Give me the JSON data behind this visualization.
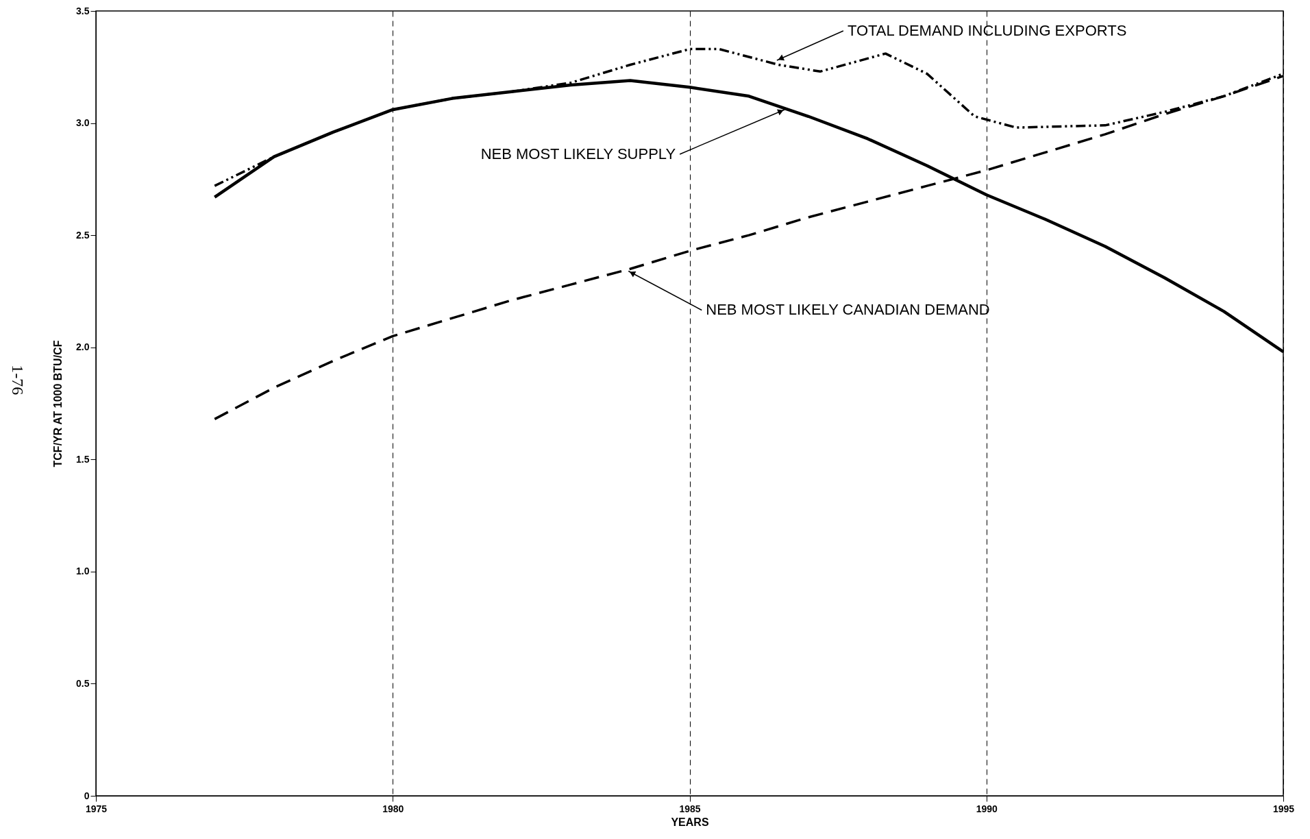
{
  "chart_data": {
    "type": "line",
    "xlabel": "YEARS",
    "ylabel": "TCF/YR AT 1000 BTU/CF",
    "xlim": [
      1975,
      1995
    ],
    "xticks": [
      1975,
      1980,
      1985,
      1990,
      1995
    ],
    "ylim": [
      0,
      3.5
    ],
    "yticks": [
      0,
      0.5,
      {
        "value": 1,
        "label": "1.0"
      },
      {
        "value": 1.5,
        "label": "1.5"
      },
      {
        "value": 2,
        "label": "2.0"
      },
      {
        "value": 2.5,
        "label": "2.5"
      },
      {
        "value": 3,
        "label": "3.0"
      },
      {
        "value": 3.5,
        "label": "3.5"
      }
    ],
    "grid": "x",
    "series": [
      {
        "color": "#000000",
        "line_style": "solid",
        "x": [
          1977,
          1978,
          1979,
          1980,
          1981,
          1982,
          1983,
          1984,
          1985,
          1986,
          1987,
          1988,
          1989,
          1990,
          1991,
          1992,
          1993,
          1994,
          1995
        ],
        "values": [
          2.67,
          2.85,
          2.96,
          3.06,
          3.11,
          3.14,
          3.17,
          3.19,
          3.16,
          3.12,
          3.03,
          2.93,
          2.81,
          2.68,
          2.57,
          2.45,
          2.31,
          2.16,
          1.98
        ]
      },
      {
        "color": "#000000",
        "line_style": "dashed",
        "x": [
          1977,
          1978,
          1979,
          1980,
          1981,
          1982,
          1983,
          1984,
          1985,
          1986,
          1987,
          1988,
          1989,
          1990,
          1991,
          1992,
          1993,
          1994,
          1995
        ],
        "values": [
          1.68,
          1.82,
          1.94,
          2.05,
          2.13,
          2.21,
          2.28,
          2.35,
          2.43,
          2.5,
          2.58,
          2.65,
          2.72,
          2.79,
          2.87,
          2.95,
          3.04,
          3.12,
          3.21
        ]
      },
      {
        "color": "#000000",
        "line_style": "dotted",
        "x": [
          1977,
          1978,
          1979,
          1980,
          1981,
          1982,
          1983,
          1984,
          1985,
          1985.5,
          1986.5,
          1987.2,
          1988.3,
          1989,
          1989.8,
          1990.5,
          1992,
          1993,
          1994,
          1995
        ],
        "values": [
          2.72,
          2.85,
          2.96,
          3.06,
          3.11,
          3.14,
          3.18,
          3.26,
          3.33,
          3.33,
          3.26,
          3.23,
          3.31,
          3.22,
          3.03,
          2.98,
          2.99,
          3.05,
          3.12,
          3.22
        ]
      }
    ],
    "annotations": [
      {
        "text": "TOTAL DEMAND INCLUDING EXPORTS",
        "x": 1986.47,
        "y": 3.28
      },
      {
        "text": "NEB MOST LIKELY SUPPLY",
        "x": 1986.6,
        "y": 3.06
      },
      {
        "text": "NEB MOST LIKELY CANADIAN DEMAND",
        "x": 1983.97,
        "y": 2.34
      },
      "1-76"
    ]
  }
}
